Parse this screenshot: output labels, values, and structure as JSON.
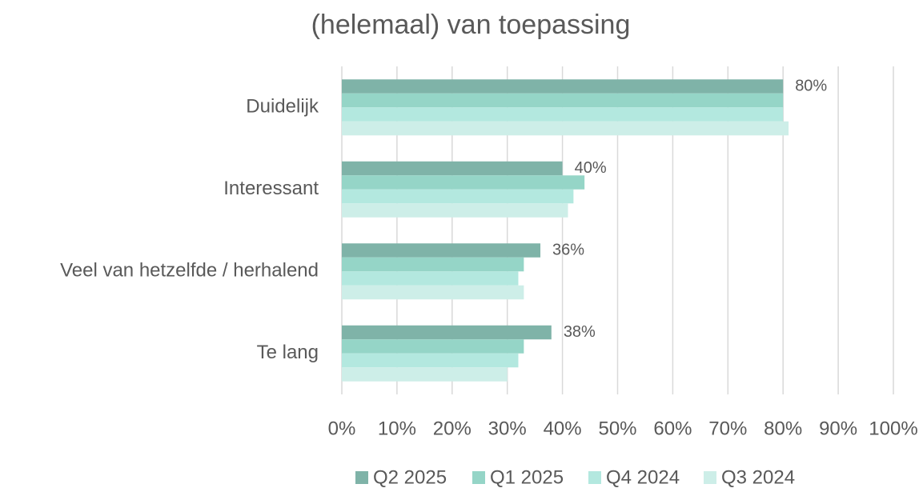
{
  "chart_data": {
    "type": "hbar",
    "title": "(helemaal) van toepassing",
    "categories": [
      "Duidelijk",
      "Interessant",
      "Veel van hetzelfde / herhalend",
      "Te lang"
    ],
    "series": [
      {
        "name": "Q2 2025",
        "color": "#7fb3a8",
        "values": [
          80,
          40,
          36,
          38
        ],
        "value_labels": [
          "80%",
          "40%",
          "36%",
          "38%"
        ]
      },
      {
        "name": "Q1 2025",
        "color": "#95d5c7",
        "values": [
          80,
          44,
          33,
          33
        ]
      },
      {
        "name": "Q4 2024",
        "color": "#b3e8df",
        "values": [
          80,
          42,
          32,
          32
        ]
      },
      {
        "name": "Q3 2024",
        "color": "#cdeee8",
        "values": [
          81,
          41,
          33,
          30
        ]
      }
    ],
    "xlim": [
      0,
      100
    ],
    "xticks": [
      {
        "value": 0,
        "label": "0%"
      },
      {
        "value": 10,
        "label": "10%"
      },
      {
        "value": 20,
        "label": "20%"
      },
      {
        "value": 30,
        "label": "30%"
      },
      {
        "value": 40,
        "label": "40%"
      },
      {
        "value": 50,
        "label": "50%"
      },
      {
        "value": 60,
        "label": "60%"
      },
      {
        "value": 70,
        "label": "70%"
      },
      {
        "value": 80,
        "label": "80%"
      },
      {
        "value": 90,
        "label": "90%"
      },
      {
        "value": 100,
        "label": "100%"
      }
    ],
    "grid": true,
    "legend": "bottom"
  }
}
